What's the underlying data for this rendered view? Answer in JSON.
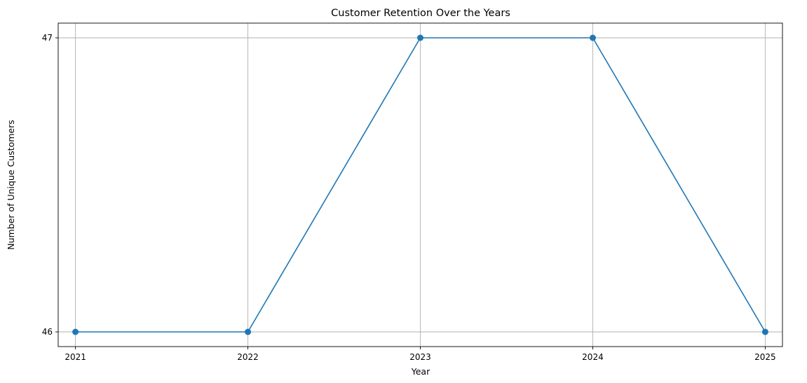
{
  "chart_data": {
    "type": "line",
    "title": "Customer Retention Over the Years",
    "xlabel": "Year",
    "ylabel": "Number of Unique Customers",
    "x": [
      2021,
      2022,
      2023,
      2024,
      2025
    ],
    "series": [
      {
        "values": [
          46,
          46,
          47,
          47,
          46
        ],
        "color": "#1f77b4",
        "marker": "circle"
      }
    ],
    "x_ticks": [
      "2021",
      "2022",
      "2023",
      "2024",
      "2025"
    ],
    "y_ticks": [
      "46",
      "47"
    ],
    "xlim": [
      2020.9,
      2025.1
    ],
    "ylim": [
      45.95,
      47.05
    ],
    "grid": true,
    "legend": "none"
  }
}
